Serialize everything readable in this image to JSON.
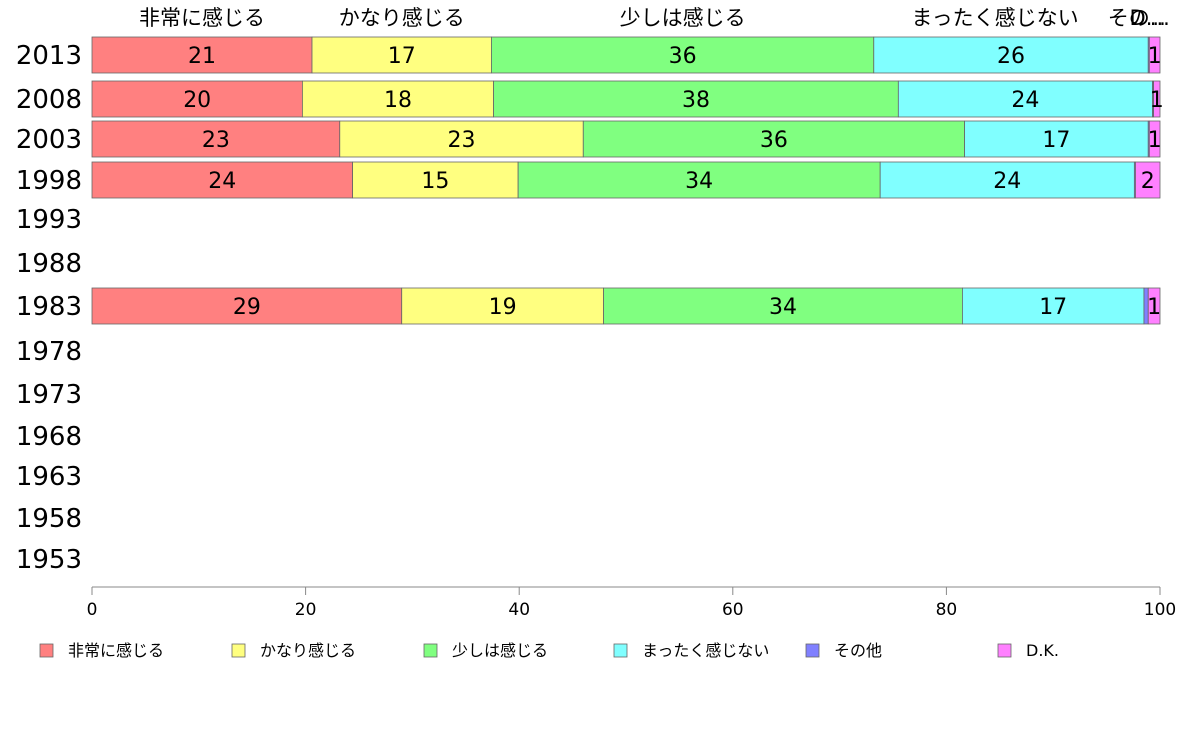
{
  "chart_data": {
    "type": "bar",
    "orientation": "horizontal",
    "stacked": true,
    "categories": [
      "2013",
      "2008",
      "2003",
      "1998",
      "1993",
      "1988",
      "1983",
      "1978",
      "1973",
      "1968",
      "1963",
      "1958",
      "1953"
    ],
    "series": [
      {
        "name": "非常に感じる",
        "color": "#ff8080",
        "values": [
          20.6,
          19.7,
          23.2,
          24.4,
          null,
          null,
          29.0,
          null,
          null,
          null,
          null,
          null,
          null
        ],
        "labels": [
          "21",
          "20",
          "23",
          "24",
          "",
          "",
          "29",
          "",
          "",
          "",
          "",
          "",
          ""
        ]
      },
      {
        "name": "かなり感じる",
        "color": "#ffff80",
        "values": [
          16.8,
          17.9,
          22.8,
          15.5,
          null,
          null,
          18.9,
          null,
          null,
          null,
          null,
          null,
          null
        ],
        "labels": [
          "17",
          "18",
          "23",
          "15",
          "",
          "",
          "19",
          "",
          "",
          "",
          "",
          "",
          ""
        ]
      },
      {
        "name": "少しは感じる",
        "color": "#80ff80",
        "values": [
          35.8,
          37.9,
          35.7,
          33.9,
          null,
          null,
          33.6,
          null,
          null,
          null,
          null,
          null,
          null
        ],
        "labels": [
          "36",
          "38",
          "36",
          "34",
          "",
          "",
          "34",
          "",
          "",
          "",
          "",
          "",
          ""
        ]
      },
      {
        "name": "まったく感じない",
        "color": "#80ffff",
        "values": [
          25.7,
          23.8,
          17.2,
          23.8,
          null,
          null,
          17.0,
          null,
          null,
          null,
          null,
          null,
          null
        ],
        "labels": [
          "26",
          "24",
          "17",
          "24",
          "",
          "",
          "17",
          "",
          "",
          "",
          "",
          "",
          ""
        ]
      },
      {
        "name": "その他",
        "color": "#8080ff",
        "values": [
          0.1,
          0.1,
          0.1,
          0.1,
          null,
          null,
          0.4,
          null,
          null,
          null,
          null,
          null,
          null
        ],
        "labels": [
          "",
          "",
          "",
          "",
          "",
          "",
          "",
          "",
          "",
          "",
          "",
          "",
          ""
        ]
      },
      {
        "name": "D.K.",
        "color": "#ff80ff",
        "values": [
          1.0,
          0.6,
          1.0,
          2.3,
          null,
          null,
          1.1,
          null,
          null,
          null,
          null,
          null,
          null
        ],
        "labels": [
          "1",
          "1",
          "1",
          "2",
          "",
          "",
          "1",
          "",
          "",
          "",
          "",
          "",
          ""
        ]
      }
    ],
    "top_labels": [
      "非常に感じる",
      "かなり感じる",
      "少しは感じる",
      "まったく感じない",
      "その...",
      "D..."
    ],
    "xlim": [
      0,
      100
    ],
    "xticks": [
      "0",
      "20",
      "40",
      "60",
      "80",
      "100"
    ],
    "grid": false,
    "legend_position": "bottom"
  }
}
